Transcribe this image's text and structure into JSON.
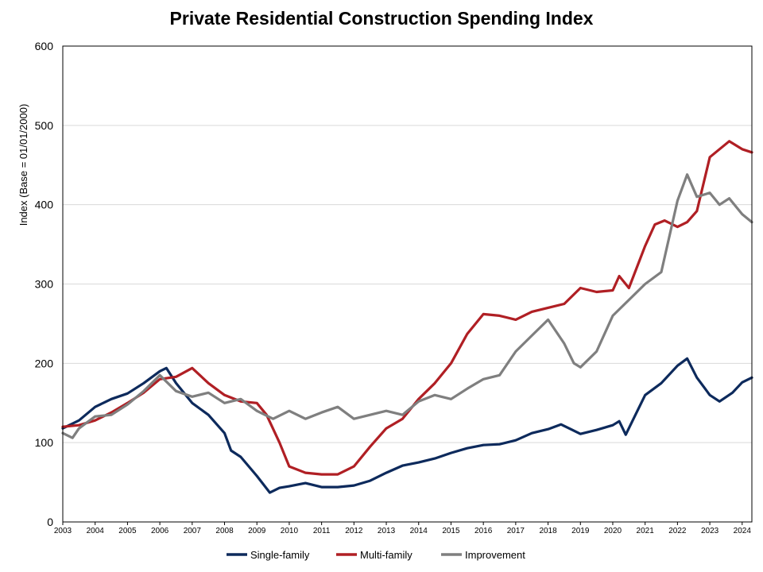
{
  "chart_data": {
    "type": "line",
    "title": "Private Residential Construction Spending Index",
    "xlabel": "",
    "ylabel": "Index  (Base = 01/01/2000)",
    "ylim": [
      0,
      600
    ],
    "xlim": [
      2003,
      2024.3
    ],
    "yticks": [
      0,
      100,
      200,
      300,
      400,
      500,
      600
    ],
    "xticks": [
      "2003",
      "2004",
      "2005",
      "2006",
      "2007",
      "2008",
      "2009",
      "2010",
      "2011",
      "2012",
      "2013",
      "2014",
      "2015",
      "2016",
      "2017",
      "2018",
      "2019",
      "2020",
      "2021",
      "2022",
      "2023",
      "2024"
    ],
    "grid": true,
    "legend_position": "bottom",
    "series": [
      {
        "name": "Single-family",
        "color": "#0d2a5c",
        "x": [
          2003,
          2003.5,
          2004,
          2004.5,
          2005,
          2005.5,
          2006,
          2006.2,
          2006.5,
          2007,
          2007.5,
          2008,
          2008.2,
          2008.5,
          2009,
          2009.4,
          2009.7,
          2010,
          2010.5,
          2011,
          2011.5,
          2012,
          2012.5,
          2013,
          2013.5,
          2014,
          2014.5,
          2015,
          2015.5,
          2016,
          2016.5,
          2017,
          2017.5,
          2018,
          2018.4,
          2018.7,
          2019,
          2019.5,
          2020,
          2020.2,
          2020.4,
          2020.7,
          2021,
          2021.5,
          2022,
          2022.3,
          2022.6,
          2023,
          2023.3,
          2023.7,
          2024,
          2024.3
        ],
        "y": [
          118,
          128,
          145,
          155,
          162,
          175,
          190,
          194,
          175,
          150,
          135,
          112,
          90,
          82,
          58,
          37,
          43,
          45,
          49,
          44,
          44,
          46,
          52,
          62,
          71,
          75,
          80,
          87,
          93,
          97,
          98,
          103,
          112,
          117,
          123,
          117,
          111,
          116,
          122,
          127,
          110,
          135,
          160,
          175,
          197,
          206,
          182,
          160,
          152,
          163,
          176,
          182
        ]
      },
      {
        "name": "Multi-family",
        "color": "#b01f24",
        "x": [
          2003,
          2003.5,
          2004,
          2004.5,
          2005,
          2005.5,
          2006,
          2006.5,
          2007,
          2007.5,
          2008,
          2008.5,
          2009,
          2009.3,
          2009.7,
          2010,
          2010.5,
          2011,
          2011.5,
          2012,
          2012.5,
          2013,
          2013.5,
          2014,
          2014.5,
          2015,
          2015.5,
          2016,
          2016.5,
          2017,
          2017.5,
          2018,
          2018.5,
          2019,
          2019.5,
          2020,
          2020.2,
          2020.5,
          2021,
          2021.3,
          2021.6,
          2022,
          2022.3,
          2022.6,
          2023,
          2023.3,
          2023.6,
          2024,
          2024.3
        ],
        "y": [
          120,
          122,
          128,
          138,
          150,
          163,
          180,
          183,
          194,
          175,
          160,
          152,
          150,
          135,
          100,
          70,
          62,
          60,
          60,
          70,
          95,
          118,
          130,
          155,
          175,
          200,
          237,
          262,
          260,
          255,
          265,
          270,
          275,
          295,
          290,
          292,
          310,
          295,
          348,
          375,
          380,
          372,
          378,
          392,
          460,
          470,
          480,
          470,
          466
        ]
      },
      {
        "name": "Improvement",
        "color": "#7f7f7f",
        "x": [
          2003,
          2003.3,
          2003.5,
          2004,
          2004.5,
          2005,
          2005.5,
          2006,
          2006.5,
          2007,
          2007.5,
          2008,
          2008.5,
          2009,
          2009.5,
          2010,
          2010.5,
          2011,
          2011.5,
          2012,
          2012.5,
          2013,
          2013.5,
          2014,
          2014.5,
          2015,
          2015.5,
          2016,
          2016.5,
          2017,
          2017.5,
          2018,
          2018.5,
          2018.8,
          2019,
          2019.5,
          2020,
          2020.5,
          2021,
          2021.5,
          2022,
          2022.3,
          2022.6,
          2023,
          2023.3,
          2023.6,
          2024,
          2024.3
        ],
        "y": [
          112,
          106,
          118,
          133,
          135,
          148,
          165,
          185,
          165,
          158,
          163,
          150,
          155,
          140,
          130,
          140,
          130,
          138,
          145,
          130,
          135,
          140,
          135,
          152,
          160,
          155,
          168,
          180,
          185,
          215,
          235,
          255,
          225,
          200,
          195,
          215,
          260,
          280,
          300,
          315,
          405,
          438,
          410,
          415,
          400,
          408,
          388,
          378
        ]
      }
    ]
  }
}
